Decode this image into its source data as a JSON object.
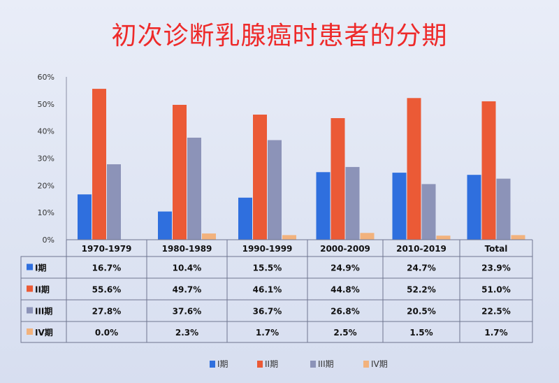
{
  "title": "初次诊断乳腺癌时患者的分期",
  "colors": {
    "title": "#ee2a2a",
    "series": [
      "#2f6fde",
      "#eb5a36",
      "#8c93b8",
      "#f2b27d"
    ]
  },
  "chart_data": {
    "type": "bar",
    "title": "初次诊断乳腺癌时患者的分期",
    "categories": [
      "1970-1979",
      "1980-1989",
      "1990-1999",
      "2000-2009",
      "2010-2019",
      "Total"
    ],
    "ylim": [
      0,
      60
    ],
    "yticks": [
      "0%",
      "10%",
      "20%",
      "30%",
      "40%",
      "50%",
      "60%"
    ],
    "grid": false,
    "legend_position": "bottom",
    "series": [
      {
        "name": "I期",
        "values": [
          16.7,
          10.4,
          15.5,
          24.9,
          24.7,
          23.9
        ],
        "labels": [
          "16.7%",
          "10.4%",
          "15.5%",
          "24.9%",
          "24.7%",
          "23.9%"
        ]
      },
      {
        "name": "II期",
        "values": [
          55.6,
          49.7,
          46.1,
          44.8,
          52.2,
          51.0
        ],
        "labels": [
          "55.6%",
          "49.7%",
          "46.1%",
          "44.8%",
          "52.2%",
          "51.0%"
        ]
      },
      {
        "name": "III期",
        "values": [
          27.8,
          37.6,
          36.7,
          26.8,
          20.5,
          22.5
        ],
        "labels": [
          "27.8%",
          "37.6%",
          "36.7%",
          "26.8%",
          "20.5%",
          "22.5%"
        ]
      },
      {
        "name": "IV期",
        "values": [
          0.0,
          2.3,
          1.7,
          2.5,
          1.5,
          1.7
        ],
        "labels": [
          "0.0%",
          "2.3%",
          "1.7%",
          "2.5%",
          "1.5%",
          "1.7%"
        ]
      }
    ]
  }
}
